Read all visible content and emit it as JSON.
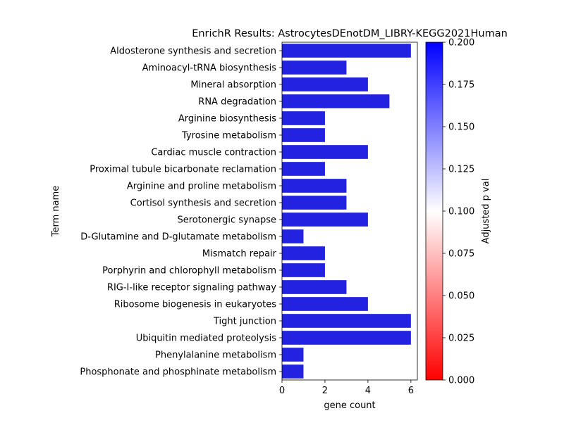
{
  "chart_data": {
    "type": "bar",
    "orientation": "horizontal",
    "title": "EnrichR Results: AstrocytesDEnotDM_LIBRY-KEGG2021Human",
    "xlabel": "gene count",
    "ylabel": "Term name",
    "xlim": [
      0,
      6.3
    ],
    "xticks": [
      "0",
      "2",
      "4",
      "6"
    ],
    "xtick_values": [
      0,
      2,
      4,
      6
    ],
    "grid": false,
    "categories": [
      "Aldosterone synthesis and secretion",
      "Aminoacyl-tRNA biosynthesis",
      "Mineral absorption",
      "RNA degradation",
      "Arginine biosynthesis",
      "Tyrosine metabolism",
      "Cardiac muscle contraction",
      "Proximal tubule bicarbonate reclamation",
      "Arginine and proline metabolism",
      "Cortisol synthesis and secretion",
      "Serotonergic synapse",
      "D-Glutamine and D-glutamate metabolism",
      "Mismatch repair",
      "Porphyrin and chlorophyll metabolism",
      "RIG-I-like receptor signaling pathway",
      "Ribosome biogenesis in eukaryotes",
      "Tight junction",
      "Ubiquitin mediated proteolysis",
      "Phenylalanine metabolism",
      "Phosphonate and phosphinate metabolism"
    ],
    "values": [
      6,
      3,
      4,
      5,
      2,
      2,
      4,
      2,
      3,
      3,
      4,
      1,
      2,
      2,
      3,
      4,
      6,
      6,
      1,
      1
    ],
    "bar_color": "#2222e0",
    "colorbar": {
      "label": "Adjusted p val",
      "range": [
        0.0,
        0.2
      ],
      "ticks": [
        "0.000",
        "0.025",
        "0.050",
        "0.075",
        "0.100",
        "0.125",
        "0.150",
        "0.175",
        "0.200"
      ],
      "tick_values": [
        0.0,
        0.025,
        0.05,
        0.075,
        0.1,
        0.125,
        0.15,
        0.175,
        0.2
      ],
      "colors": [
        "#ff0000",
        "#ffffff",
        "#0000ff"
      ]
    }
  }
}
